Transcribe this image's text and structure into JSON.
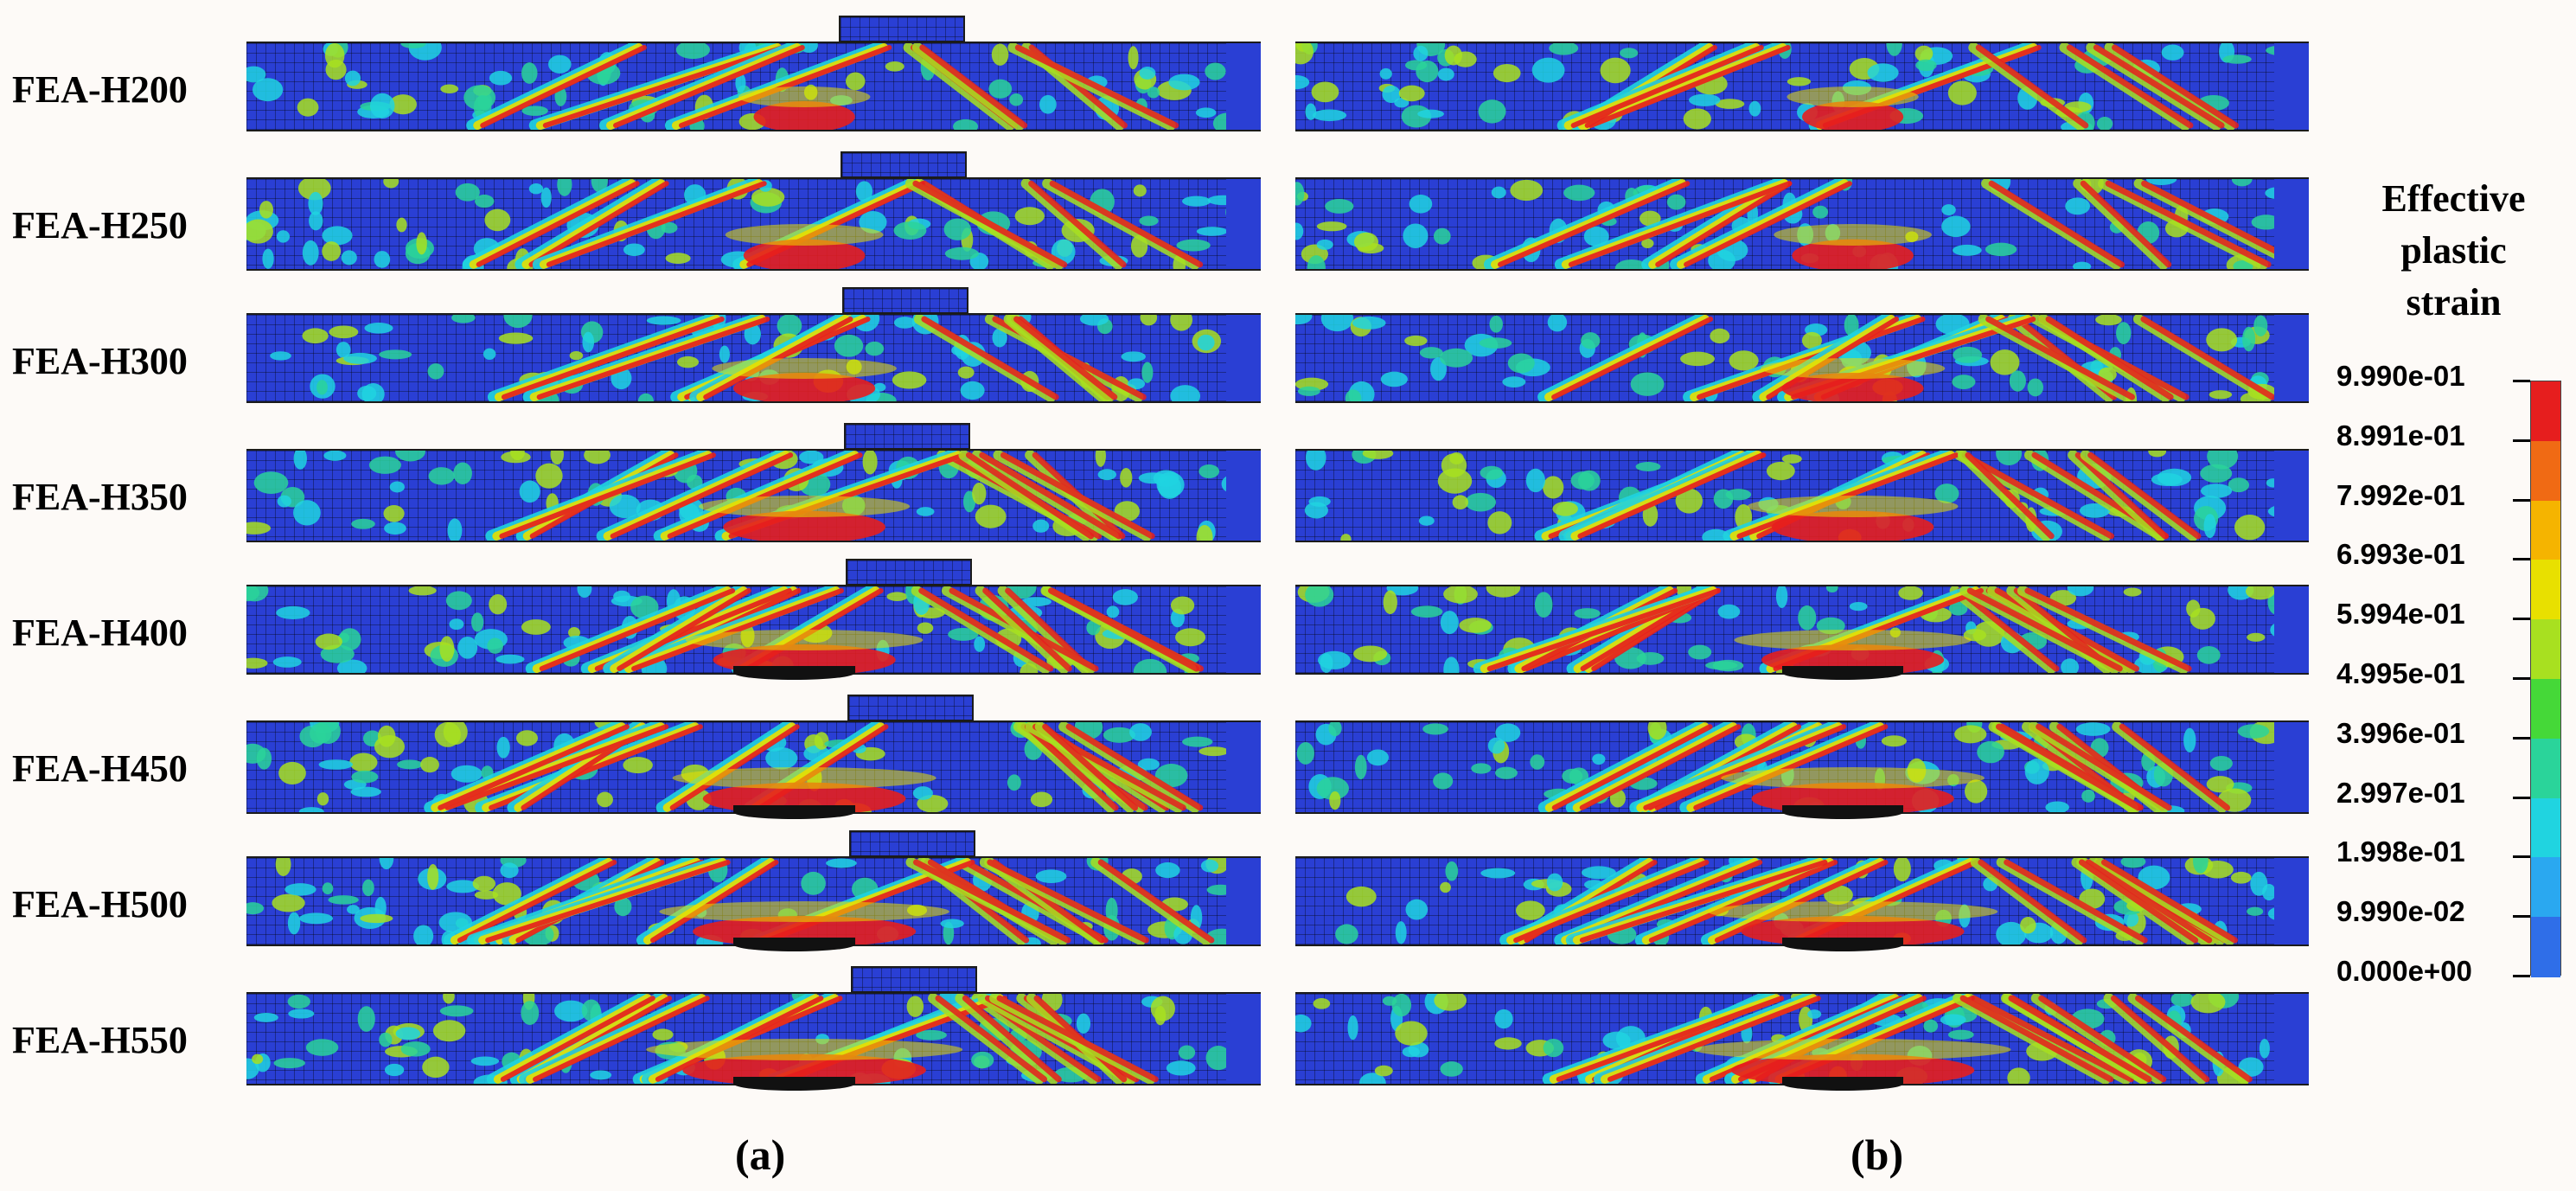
{
  "rows": [
    "FEA-H200",
    "FEA-H250",
    "FEA-H300",
    "FEA-H350",
    "FEA-H400",
    "FEA-H450",
    "FEA-H500",
    "FEA-H550"
  ],
  "panels": [
    "(a)",
    "(b)"
  ],
  "legend": {
    "title": [
      "Effective",
      "plastic",
      "strain"
    ],
    "labels": [
      "9.990e-01",
      "8.991e-01",
      "7.992e-01",
      "6.993e-01",
      "5.994e-01",
      "4.995e-01",
      "3.996e-01",
      "2.997e-01",
      "1.998e-01",
      "9.990e-02",
      "0.000e+00"
    ],
    "colors": [
      "#e61e1e",
      "#f06a14",
      "#f5b400",
      "#e8e000",
      "#a8e020",
      "#45d838",
      "#2ad49a",
      "#20d4e0",
      "#2aa8f0",
      "#2f6ee8",
      "#1a1ee0"
    ]
  }
}
